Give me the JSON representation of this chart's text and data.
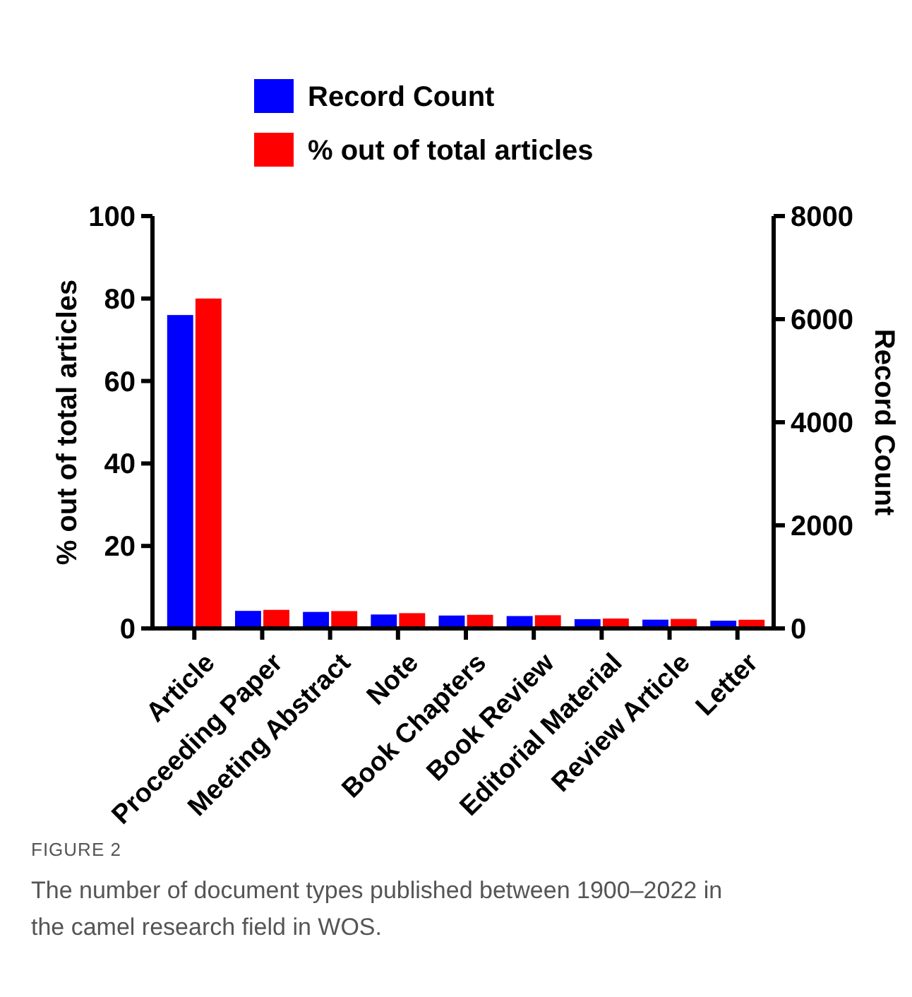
{
  "chart_data": {
    "type": "bar",
    "categories": [
      "Article",
      "Proceeding Paper",
      "Meeting Abstract",
      "Note",
      "Book Chapters",
      "Book Review",
      "Editorial Material",
      "Review Article",
      "Letter"
    ],
    "series": [
      {
        "name": "Record Count",
        "color": "#0000ff",
        "axis": "y2",
        "values": [
          6080,
          340,
          320,
          270,
          250,
          240,
          180,
          170,
          150
        ]
      },
      {
        "name": "% out of total articles",
        "color": "#ff0000",
        "values": [
          80,
          4.5,
          4.2,
          3.7,
          3.3,
          3.2,
          2.4,
          2.3,
          2.1
        ]
      }
    ],
    "ylabel": "% out of total articles",
    "y2label": "Record Count",
    "ylim": [
      0,
      100
    ],
    "yticks": [
      0,
      20,
      40,
      60,
      80,
      100
    ],
    "y2lim": [
      0,
      8000
    ],
    "y2ticks": [
      0,
      2000,
      4000,
      6000,
      8000
    ],
    "legend": "top",
    "grid": false,
    "annotations": [
      "FIGURE 2",
      "The number of document types published between 1900–2022 in the camel research field in WOS."
    ]
  }
}
